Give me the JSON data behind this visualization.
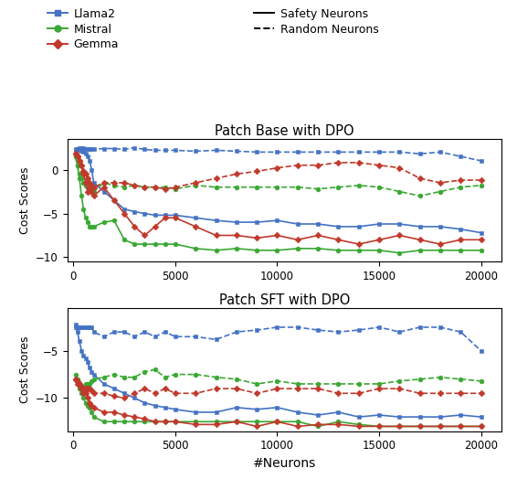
{
  "title1": "Patch Base with DPO",
  "title2": "Patch SFT with DPO",
  "xlabel": "#Neurons",
  "ylabel": "Cost Scores",
  "colors": {
    "llama2": "#4472C4",
    "mistral": "#3AA832",
    "gemma": "#C0392B"
  },
  "x_ticks": [
    0,
    5000,
    10000,
    15000,
    20000
  ],
  "plot1": {
    "llama2_safety": {
      "x": [
        100,
        200,
        300,
        400,
        500,
        600,
        700,
        800,
        900,
        1000,
        1500,
        2000,
        2500,
        3000,
        3500,
        4000,
        4500,
        5000,
        6000,
        7000,
        8000,
        9000,
        10000,
        11000,
        12000,
        13000,
        14000,
        15000,
        16000,
        17000,
        18000,
        19000,
        20000
      ],
      "y": [
        2.2,
        2.3,
        2.2,
        2.1,
        2.0,
        1.8,
        1.5,
        1.0,
        0.0,
        -1.5,
        -2.5,
        -3.5,
        -4.5,
        -4.8,
        -5.0,
        -5.2,
        -5.2,
        -5.2,
        -5.5,
        -5.8,
        -6.0,
        -6.0,
        -5.8,
        -6.2,
        -6.2,
        -6.5,
        -6.5,
        -6.2,
        -6.2,
        -6.5,
        -6.5,
        -6.8,
        -7.2
      ]
    },
    "llama2_random": {
      "x": [
        100,
        200,
        300,
        400,
        500,
        600,
        700,
        800,
        900,
        1000,
        1500,
        2000,
        2500,
        3000,
        3500,
        4000,
        4500,
        5000,
        6000,
        7000,
        8000,
        9000,
        10000,
        11000,
        12000,
        13000,
        14000,
        15000,
        16000,
        17000,
        18000,
        19000,
        20000
      ],
      "y": [
        2.3,
        2.4,
        2.5,
        2.5,
        2.5,
        2.4,
        2.4,
        2.3,
        2.3,
        2.3,
        2.4,
        2.4,
        2.3,
        2.5,
        2.3,
        2.2,
        2.2,
        2.2,
        2.1,
        2.2,
        2.1,
        2.0,
        2.0,
        2.0,
        2.0,
        2.0,
        2.0,
        2.0,
        2.0,
        1.8,
        2.0,
        1.5,
        1.0
      ]
    },
    "mistral_safety": {
      "x": [
        100,
        200,
        300,
        400,
        500,
        600,
        700,
        800,
        900,
        1000,
        1500,
        2000,
        2500,
        3000,
        3500,
        4000,
        4500,
        5000,
        6000,
        7000,
        8000,
        9000,
        10000,
        11000,
        12000,
        13000,
        14000,
        15000,
        16000,
        17000,
        18000,
        19000,
        20000
      ],
      "y": [
        1.5,
        0.5,
        -1.0,
        -3.0,
        -4.5,
        -5.5,
        -6.0,
        -6.5,
        -6.5,
        -6.5,
        -6.0,
        -5.8,
        -8.0,
        -8.5,
        -8.5,
        -8.5,
        -8.5,
        -8.5,
        -9.0,
        -9.2,
        -9.0,
        -9.2,
        -9.2,
        -9.0,
        -9.0,
        -9.2,
        -9.2,
        -9.2,
        -9.5,
        -9.2,
        -9.2,
        -9.2,
        -9.2
      ]
    },
    "mistral_random": {
      "x": [
        100,
        200,
        300,
        400,
        500,
        600,
        700,
        800,
        900,
        1000,
        1500,
        2000,
        2500,
        3000,
        3500,
        4000,
        4500,
        5000,
        6000,
        7000,
        8000,
        9000,
        10000,
        11000,
        12000,
        13000,
        14000,
        15000,
        16000,
        17000,
        18000,
        19000,
        20000
      ],
      "y": [
        1.5,
        0.5,
        -0.5,
        -1.0,
        -1.5,
        -1.8,
        -2.0,
        -2.0,
        -2.2,
        -2.5,
        -1.5,
        -1.8,
        -2.0,
        -1.8,
        -2.0,
        -2.0,
        -2.0,
        -2.2,
        -1.8,
        -2.0,
        -2.0,
        -2.0,
        -2.0,
        -2.0,
        -2.2,
        -2.0,
        -1.8,
        -2.0,
        -2.5,
        -3.0,
        -2.5,
        -2.0,
        -1.8
      ]
    },
    "gemma_safety": {
      "x": [
        100,
        200,
        300,
        400,
        500,
        600,
        700,
        800,
        900,
        1000,
        1500,
        2000,
        2500,
        3000,
        3500,
        4000,
        4500,
        5000,
        6000,
        7000,
        8000,
        9000,
        10000,
        11000,
        12000,
        13000,
        14000,
        15000,
        16000,
        17000,
        18000,
        19000,
        20000
      ],
      "y": [
        1.8,
        1.5,
        1.0,
        0.5,
        -0.5,
        -1.5,
        -2.5,
        -2.0,
        -2.5,
        -3.0,
        -2.0,
        -3.5,
        -5.0,
        -6.5,
        -7.5,
        -6.5,
        -5.5,
        -5.5,
        -6.5,
        -7.5,
        -7.5,
        -7.8,
        -7.5,
        -8.0,
        -7.5,
        -8.0,
        -8.5,
        -8.0,
        -7.5,
        -8.0,
        -8.5,
        -8.0,
        -8.0
      ]
    },
    "gemma_random": {
      "x": [
        100,
        200,
        300,
        400,
        500,
        600,
        700,
        800,
        900,
        1000,
        1500,
        2000,
        2500,
        3000,
        3500,
        4000,
        4500,
        5000,
        6000,
        7000,
        8000,
        9000,
        10000,
        11000,
        12000,
        13000,
        14000,
        15000,
        16000,
        17000,
        18000,
        19000,
        20000
      ],
      "y": [
        1.8,
        1.5,
        1.0,
        0.5,
        -0.2,
        -0.5,
        -1.0,
        -1.5,
        -1.8,
        -2.0,
        -1.5,
        -1.5,
        -1.5,
        -1.8,
        -2.0,
        -2.0,
        -2.2,
        -2.0,
        -1.5,
        -1.0,
        -0.5,
        -0.2,
        0.2,
        0.5,
        0.5,
        0.8,
        0.8,
        0.5,
        0.2,
        -1.0,
        -1.5,
        -1.2,
        -1.2
      ]
    }
  },
  "plot2": {
    "llama2_safety": {
      "x": [
        100,
        200,
        300,
        400,
        500,
        600,
        700,
        800,
        900,
        1000,
        1500,
        2000,
        2500,
        3000,
        3500,
        4000,
        4500,
        5000,
        6000,
        7000,
        8000,
        9000,
        10000,
        11000,
        12000,
        13000,
        14000,
        15000,
        16000,
        17000,
        18000,
        19000,
        20000
      ],
      "y": [
        -2.5,
        -3.0,
        -4.0,
        -5.0,
        -5.5,
        -5.8,
        -6.2,
        -6.8,
        -7.2,
        -7.5,
        -8.5,
        -9.0,
        -9.5,
        -10.0,
        -10.5,
        -10.8,
        -11.0,
        -11.2,
        -11.5,
        -11.5,
        -11.0,
        -11.2,
        -11.0,
        -11.5,
        -11.8,
        -11.5,
        -12.0,
        -11.8,
        -12.0,
        -12.0,
        -12.0,
        -11.8,
        -12.0
      ]
    },
    "llama2_random": {
      "x": [
        100,
        200,
        300,
        400,
        500,
        600,
        700,
        800,
        900,
        1000,
        1500,
        2000,
        2500,
        3000,
        3500,
        4000,
        4500,
        5000,
        6000,
        7000,
        8000,
        9000,
        10000,
        11000,
        12000,
        13000,
        14000,
        15000,
        16000,
        17000,
        18000,
        19000,
        20000
      ],
      "y": [
        -2.2,
        -2.5,
        -2.5,
        -2.5,
        -2.5,
        -2.5,
        -2.5,
        -2.5,
        -2.5,
        -3.0,
        -3.5,
        -3.0,
        -3.0,
        -3.5,
        -3.0,
        -3.5,
        -3.0,
        -3.5,
        -3.5,
        -3.8,
        -3.0,
        -2.8,
        -2.5,
        -2.5,
        -2.8,
        -3.0,
        -2.8,
        -2.5,
        -3.0,
        -2.5,
        -2.5,
        -3.0,
        -5.0
      ]
    },
    "mistral_safety": {
      "x": [
        100,
        200,
        300,
        400,
        500,
        600,
        700,
        800,
        900,
        1000,
        1500,
        2000,
        2500,
        3000,
        3500,
        4000,
        4500,
        5000,
        6000,
        7000,
        8000,
        9000,
        10000,
        11000,
        12000,
        13000,
        14000,
        15000,
        16000,
        17000,
        18000,
        19000,
        20000
      ],
      "y": [
        -8.0,
        -8.5,
        -9.0,
        -9.5,
        -10.0,
        -10.5,
        -10.8,
        -11.0,
        -11.5,
        -12.0,
        -12.5,
        -12.5,
        -12.5,
        -12.5,
        -12.5,
        -12.5,
        -12.5,
        -12.5,
        -12.5,
        -12.5,
        -12.5,
        -12.5,
        -12.5,
        -12.5,
        -13.0,
        -12.5,
        -12.8,
        -13.0,
        -13.0,
        -13.0,
        -13.0,
        -13.0,
        -13.0
      ]
    },
    "mistral_random": {
      "x": [
        100,
        200,
        300,
        400,
        500,
        600,
        700,
        800,
        900,
        1000,
        1500,
        2000,
        2500,
        3000,
        3500,
        4000,
        4500,
        5000,
        6000,
        7000,
        8000,
        9000,
        10000,
        11000,
        12000,
        13000,
        14000,
        15000,
        16000,
        17000,
        18000,
        19000,
        20000
      ],
      "y": [
        -7.5,
        -8.0,
        -8.5,
        -8.8,
        -8.8,
        -8.5,
        -8.5,
        -8.5,
        -8.2,
        -8.0,
        -7.8,
        -7.5,
        -7.8,
        -7.8,
        -7.2,
        -7.0,
        -7.8,
        -7.5,
        -7.5,
        -7.8,
        -8.0,
        -8.5,
        -8.2,
        -8.5,
        -8.5,
        -8.5,
        -8.5,
        -8.5,
        -8.2,
        -8.0,
        -7.8,
        -8.0,
        -8.2
      ]
    },
    "gemma_safety": {
      "x": [
        100,
        200,
        300,
        400,
        500,
        600,
        700,
        800,
        900,
        1000,
        1500,
        2000,
        2500,
        3000,
        3500,
        4000,
        4500,
        5000,
        6000,
        7000,
        8000,
        9000,
        10000,
        11000,
        12000,
        13000,
        14000,
        15000,
        16000,
        17000,
        18000,
        19000,
        20000
      ],
      "y": [
        -8.0,
        -8.2,
        -8.5,
        -9.0,
        -9.5,
        -9.5,
        -10.0,
        -10.5,
        -10.8,
        -11.0,
        -11.5,
        -11.5,
        -11.8,
        -12.0,
        -12.2,
        -12.5,
        -12.5,
        -12.5,
        -12.8,
        -12.8,
        -12.5,
        -13.0,
        -12.5,
        -13.0,
        -12.8,
        -12.8,
        -13.0,
        -13.0,
        -13.0,
        -13.0,
        -13.0,
        -13.0,
        -13.0
      ]
    },
    "gemma_random": {
      "x": [
        100,
        200,
        300,
        400,
        500,
        600,
        700,
        800,
        900,
        1000,
        1500,
        2000,
        2500,
        3000,
        3500,
        4000,
        4500,
        5000,
        6000,
        7000,
        8000,
        9000,
        10000,
        11000,
        12000,
        13000,
        14000,
        15000,
        16000,
        17000,
        18000,
        19000,
        20000
      ],
      "y": [
        -8.0,
        -8.5,
        -8.5,
        -8.8,
        -9.0,
        -9.0,
        -9.0,
        -9.0,
        -9.2,
        -9.5,
        -9.5,
        -9.8,
        -10.0,
        -9.5,
        -9.0,
        -9.5,
        -9.0,
        -9.5,
        -9.5,
        -9.0,
        -9.0,
        -9.5,
        -9.0,
        -9.0,
        -9.0,
        -9.5,
        -9.5,
        -9.0,
        -9.0,
        -9.5,
        -9.5,
        -9.5,
        -9.5
      ]
    }
  },
  "legend": {
    "llama2_label": "Llama2",
    "mistral_label": "Mistral",
    "gemma_label": "Gemma",
    "safety_label": "Safety Neurons",
    "random_label": "Random Neurons"
  }
}
